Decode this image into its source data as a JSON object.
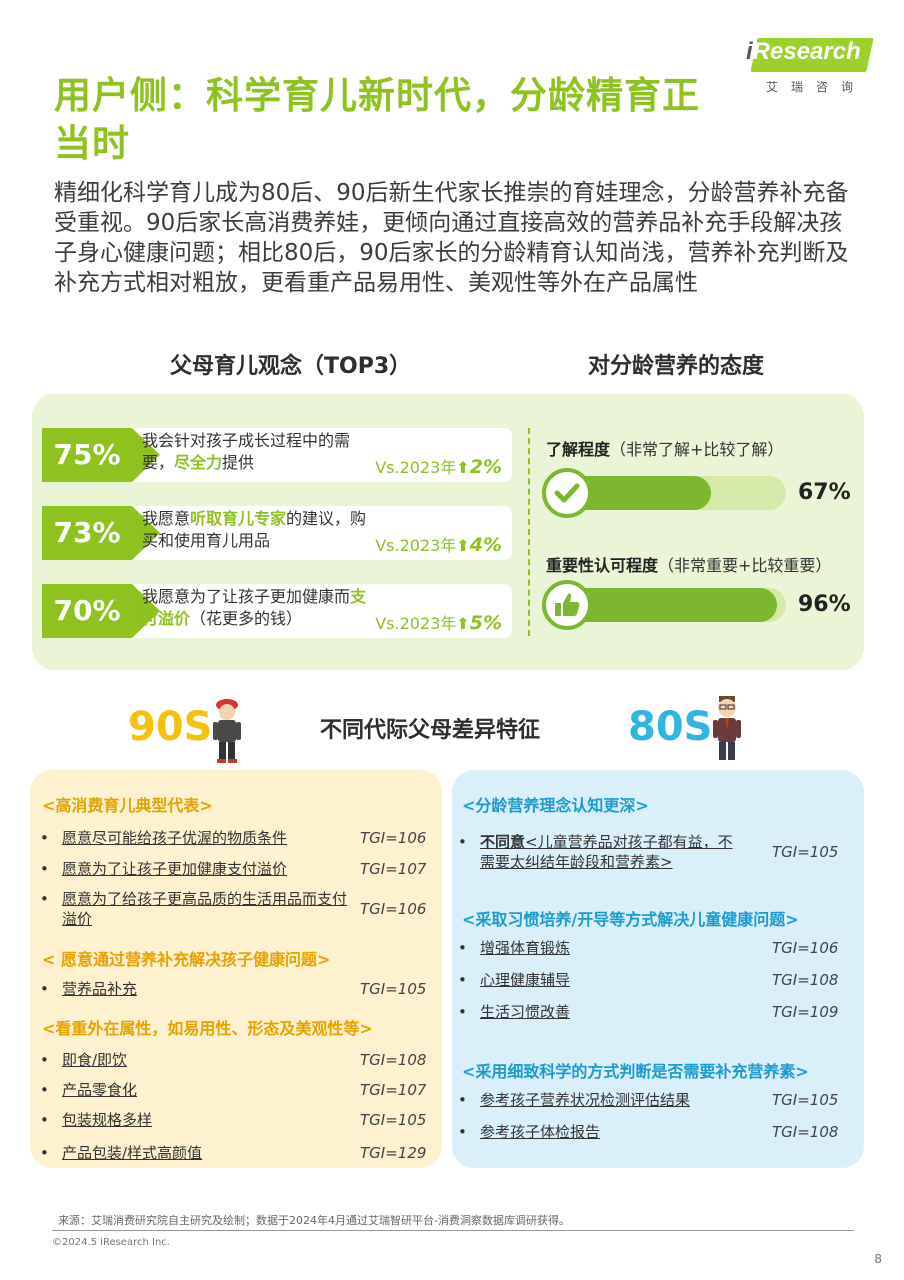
{
  "brand": {
    "logo_i": "i",
    "logo_text": "Research",
    "logo_sub": "艾瑞咨询"
  },
  "title": "用户侧：科学育儿新时代，分龄精育正当时",
  "intro": "精细化科学育儿成为80后、90后新生代家长推崇的育娃理念，分龄营养补充备受重视。90后家长高消费养娃，更倾向通过直接高效的营养品补充手段解决孩子身心健康问题；相比80后，90后家长的分龄精育认知尚浅，营养补充判断及补充方式相对粗放，更看重产品易用性、美观性等外在产品属性",
  "left_heading": "父母育儿观念（TOP3）",
  "right_heading": "对分龄营养的态度",
  "opinions": [
    {
      "pct": "75%",
      "text_a": "我会针对孩子成长过程中的需要，",
      "text_hl": "尽全力",
      "text_b": "提供",
      "vs": "Vs.2023年",
      "arrow": "⬆",
      "up": "2%",
      "level": 0.75
    },
    {
      "pct": "73%",
      "text_a": "我愿意",
      "text_hl": "听取育儿专家",
      "text_b": "的建议，购买和使用育儿用品",
      "vs": "Vs.2023年",
      "arrow": "⬆",
      "up": "4%",
      "level": 0.73
    },
    {
      "pct": "70%",
      "text_a": "我愿意为了让孩子更加健康而",
      "text_hl": "支付溢价",
      "text_b": "（花更多的钱）",
      "vs": "Vs.2023年",
      "arrow": "⬆",
      "up": "5%",
      "level": 0.7
    }
  ],
  "attitudes": [
    {
      "label_bold": "了解程度",
      "label_rest": "（非常了解+比较了解）",
      "pct": "67%",
      "level": 0.67,
      "icon": "check-icon"
    },
    {
      "label_bold": "重要性认可程度",
      "label_rest": "（非常重要+比较重要）",
      "pct": "96%",
      "level": 0.96,
      "icon": "thumbs-up-icon"
    }
  ],
  "gen_heading": "不同代际父母差异特征",
  "gen90": {
    "label": "90S",
    "categories": [
      {
        "title": "<高消费育儿典型代表>",
        "items": [
          {
            "text": "愿意尽可能给孩子优渥的物质条件",
            "tgi": "TGI=106"
          },
          {
            "text": "愿意为了让孩子更加健康支付溢价",
            "tgi": "TGI=107"
          },
          {
            "text": "愿意为了给孩子更高品质的生活用品而支付溢价",
            "tgi": "TGI=106"
          }
        ]
      },
      {
        "title": "< 愿意通过营养补充解决孩子健康问题>",
        "items": [
          {
            "text": "营养品补充",
            "tgi": "TGI=105"
          }
        ]
      },
      {
        "title": "<看重外在属性，如易用性、形态及美观性等>",
        "items": [
          {
            "text": "即食/即饮",
            "tgi": "TGI=108"
          },
          {
            "text": "产品零食化",
            "tgi": "TGI=107"
          },
          {
            "text": "包装规格多样",
            "tgi": "TGI=105"
          },
          {
            "text": "产品包装/样式高颜值",
            "tgi": "TGI=129"
          }
        ]
      }
    ]
  },
  "gen80": {
    "label": "80S",
    "categories": [
      {
        "title": "<分龄营养理念认知更深>",
        "items": [
          {
            "text_bold": "不同意",
            "text": "<儿童营养品对孩子都有益，不需要太纠结年龄段和营养素>",
            "tgi": "TGI=105"
          }
        ]
      },
      {
        "title": "<采取习惯培养/开导等方式解决儿童健康问题>",
        "items": [
          {
            "text": "增强体育锻炼",
            "tgi": "TGI=106"
          },
          {
            "text": "心理健康辅导",
            "tgi": "TGI=108"
          },
          {
            "text": "生活习惯改善",
            "tgi": "TGI=109"
          }
        ]
      },
      {
        "title": "<采用细致科学的方式判断是否需要补充营养素>",
        "items": [
          {
            "text": "参考孩子营养状况检测评估结果",
            "tgi": "TGI=105"
          },
          {
            "text": "参考孩子体检报告",
            "tgi": "TGI=108"
          }
        ]
      }
    ]
  },
  "bullet": "•",
  "source": "来源：艾瑞消费研究院自主研究及绘制；数据于2024年4月通过艾瑞智研平台-消费洞察数据库调研获得。",
  "copyright": "©2024.5 iResearch Inc.",
  "page_number": "8",
  "colors": {
    "green": "#8dc21f",
    "yellow": "#f5c00f",
    "blue": "#2eb5e0"
  }
}
